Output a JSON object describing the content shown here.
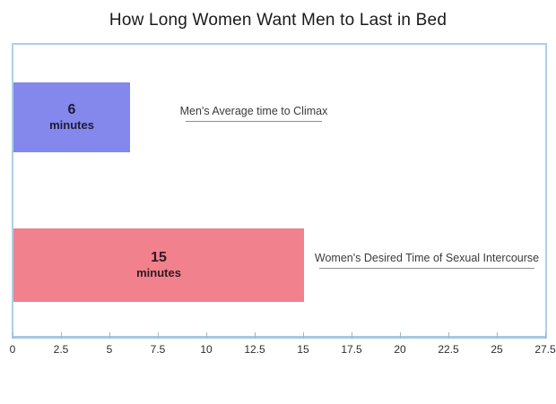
{
  "chart_data": {
    "type": "bar",
    "orientation": "horizontal",
    "title": "How Long Women Want Men to Last in Bed",
    "xlabel": "",
    "ylabel": "",
    "xlim": [
      0,
      27.5
    ],
    "x_tick_labels": [
      "0",
      "2.5",
      "5",
      "7.5",
      "10",
      "12.5",
      "15",
      "17.5",
      "20",
      "22.5",
      "25",
      "27.5"
    ],
    "grid": false,
    "legend": "none",
    "bars": [
      {
        "category": "Men's Average time to Climax",
        "value": 6,
        "value_label": "6",
        "unit_label": "minutes",
        "color": "#8487ec",
        "label_color": "#1d1d33"
      },
      {
        "category": "Women's Desired Time of Sexual Intercourse",
        "value": 15,
        "value_label": "15",
        "unit_label": "minutes",
        "color": "#f0818d",
        "label_color": "#311a20"
      }
    ]
  },
  "style": {
    "frame_color": "#aecfe8",
    "axis_color": "#a5c9e4",
    "tick_color": "#9fb6c7",
    "tick_label_color": "#2d2d2d",
    "annotation_color": "#3b3b3b",
    "underline_color": "#8f8f8f",
    "title_color": "#1a1a1a",
    "background_color": "#ffffff"
  }
}
